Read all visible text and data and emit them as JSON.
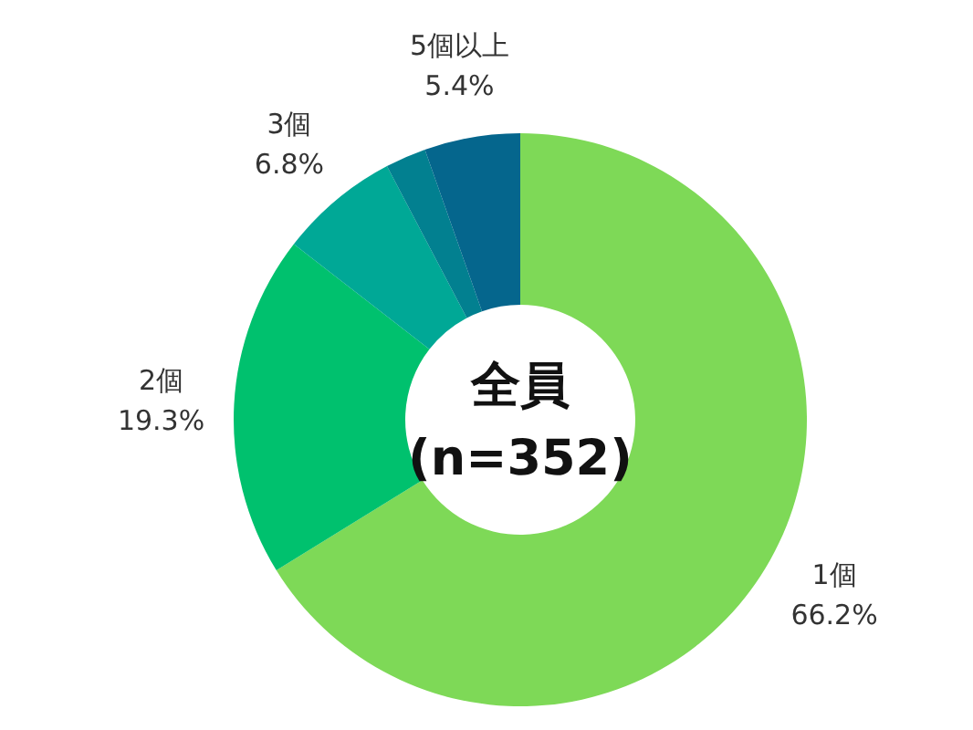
{
  "chart_data": {
    "type": "donut",
    "categories": [
      "1個",
      "2個",
      "3個",
      null,
      "5個以上"
    ],
    "values": [
      66.2,
      19.3,
      6.8,
      2.3,
      5.4
    ],
    "value_labels": [
      "66.2%",
      "19.3%",
      "6.8%",
      null,
      "5.4%"
    ],
    "colors": [
      "#7ed957",
      "#00c16e",
      "#00a896",
      "#028090",
      "#05668d"
    ],
    "annotations": [
      "全員",
      "(n=352)"
    ]
  }
}
